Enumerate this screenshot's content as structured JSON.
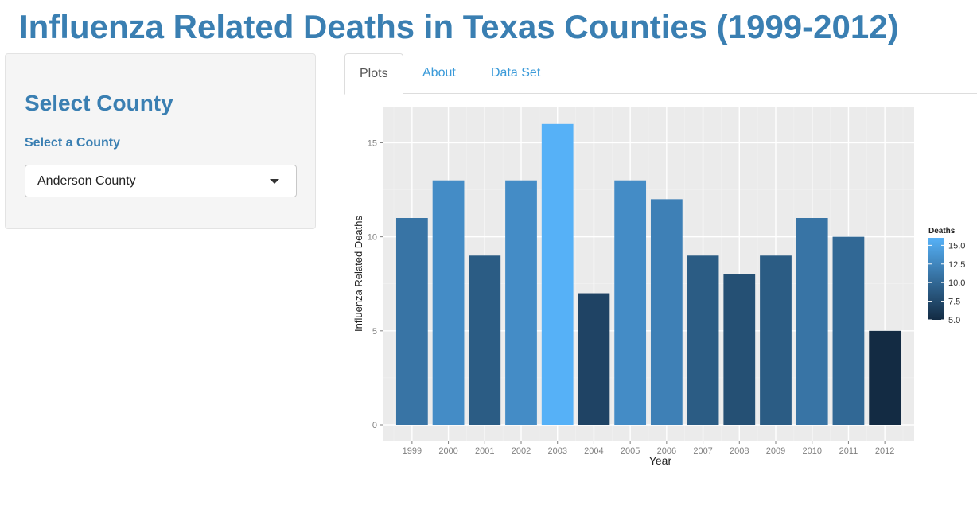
{
  "page": {
    "title": "Influenza Related Deaths in Texas Counties (1999-2012)"
  },
  "sidebar": {
    "heading": "Select County",
    "select_label": "Select a County",
    "selected_county": "Anderson County"
  },
  "tabs": [
    {
      "label": "Plots",
      "active": true
    },
    {
      "label": "About",
      "active": false
    },
    {
      "label": "Data Set",
      "active": false
    }
  ],
  "colors": {
    "accent": "#3a7fb2",
    "tab_link": "#3a9ad9",
    "panel_bg": "#ebebeb",
    "gradient_low": "#132b43",
    "gradient_high": "#56b1f7"
  },
  "chart_data": {
    "type": "bar",
    "categories": [
      "1999",
      "2000",
      "2001",
      "2002",
      "2003",
      "2004",
      "2005",
      "2006",
      "2007",
      "2008",
      "2009",
      "2010",
      "2011",
      "2012"
    ],
    "values": [
      11,
      13,
      9,
      13,
      16,
      7,
      13,
      12,
      9,
      8,
      9,
      11,
      10,
      5
    ],
    "xlabel": "Year",
    "ylabel": "Influenza Related Deaths",
    "ylim": [
      0,
      16.5
    ],
    "yticks": [
      0,
      5,
      10,
      15
    ],
    "grid": true,
    "legend": {
      "title": "Deaths",
      "position": "right",
      "ticks": [
        "15.0",
        "12.5",
        "10.0",
        "7.5",
        "5.0"
      ],
      "range": [
        5,
        16
      ]
    }
  }
}
